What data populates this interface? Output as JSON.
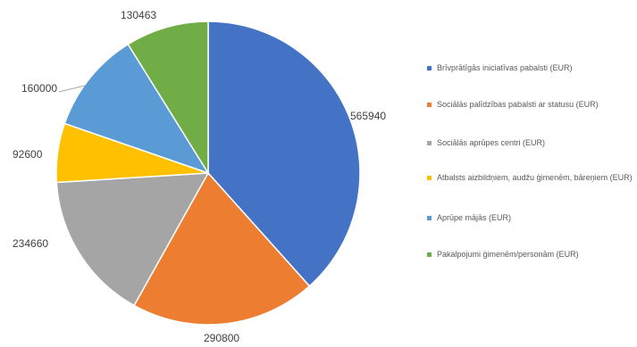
{
  "chart_data": {
    "type": "pie",
    "start_angle_deg": 0,
    "direction": "clockwise",
    "legend_position": "right",
    "slices": [
      {
        "label": "Brīvprātīgās iniciatīvas pabalsti (EUR)",
        "value": 565940,
        "value_label": "565940",
        "color": "#4472C4"
      },
      {
        "label": "Sociālās palīdzības pabalsti ar statusu (EUR)",
        "value": 290800,
        "value_label": "290800",
        "color": "#ED7D31"
      },
      {
        "label": "Sociālās aprūpes centri (EUR)",
        "value": 234660,
        "value_label": "234660",
        "color": "#A5A5A5"
      },
      {
        "label": "Atbalsts aizbildņiem, audžu ģimenēm, bāreņiem (EUR)",
        "value": 92600,
        "value_label": "92600",
        "color": "#FFC000"
      },
      {
        "label": "Aprūpe mājās (EUR)",
        "value": 160000,
        "value_label": "160000",
        "color": "#5B9BD5"
      },
      {
        "label": "Pakalpojumi ģimenēm/personām (EUR)",
        "value": 130463,
        "value_label": "130463",
        "color": "#70AD47"
      }
    ]
  }
}
